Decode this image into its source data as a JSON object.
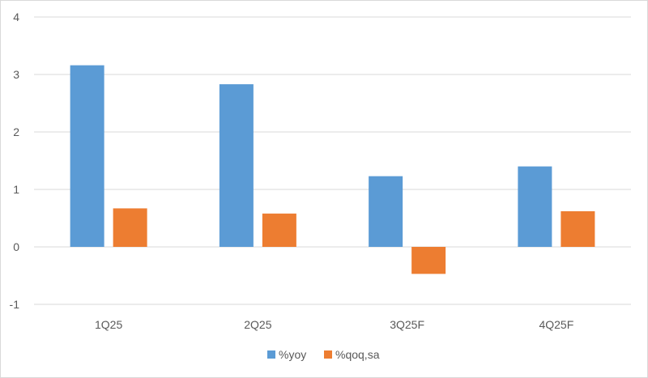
{
  "colors": {
    "yoy": "#5b9bd5",
    "qoq": "#ed7d31",
    "grid": "#d9d9d9",
    "text": "#595959"
  },
  "chart_data": {
    "type": "bar",
    "title": "",
    "xlabel": "",
    "ylabel": "",
    "categories": [
      "1Q25",
      "2Q25",
      "3Q25F",
      "4Q25F"
    ],
    "series": [
      {
        "name": "%yoy",
        "values": [
          3.16,
          2.83,
          1.23,
          1.4
        ]
      },
      {
        "name": "%qoq,sa",
        "values": [
          0.67,
          0.58,
          -0.47,
          0.62
        ]
      }
    ],
    "ylim": [
      -1,
      4
    ],
    "yticks": [
      -1,
      0,
      1,
      2,
      3,
      4
    ],
    "grid": true,
    "legend": "bottom"
  }
}
